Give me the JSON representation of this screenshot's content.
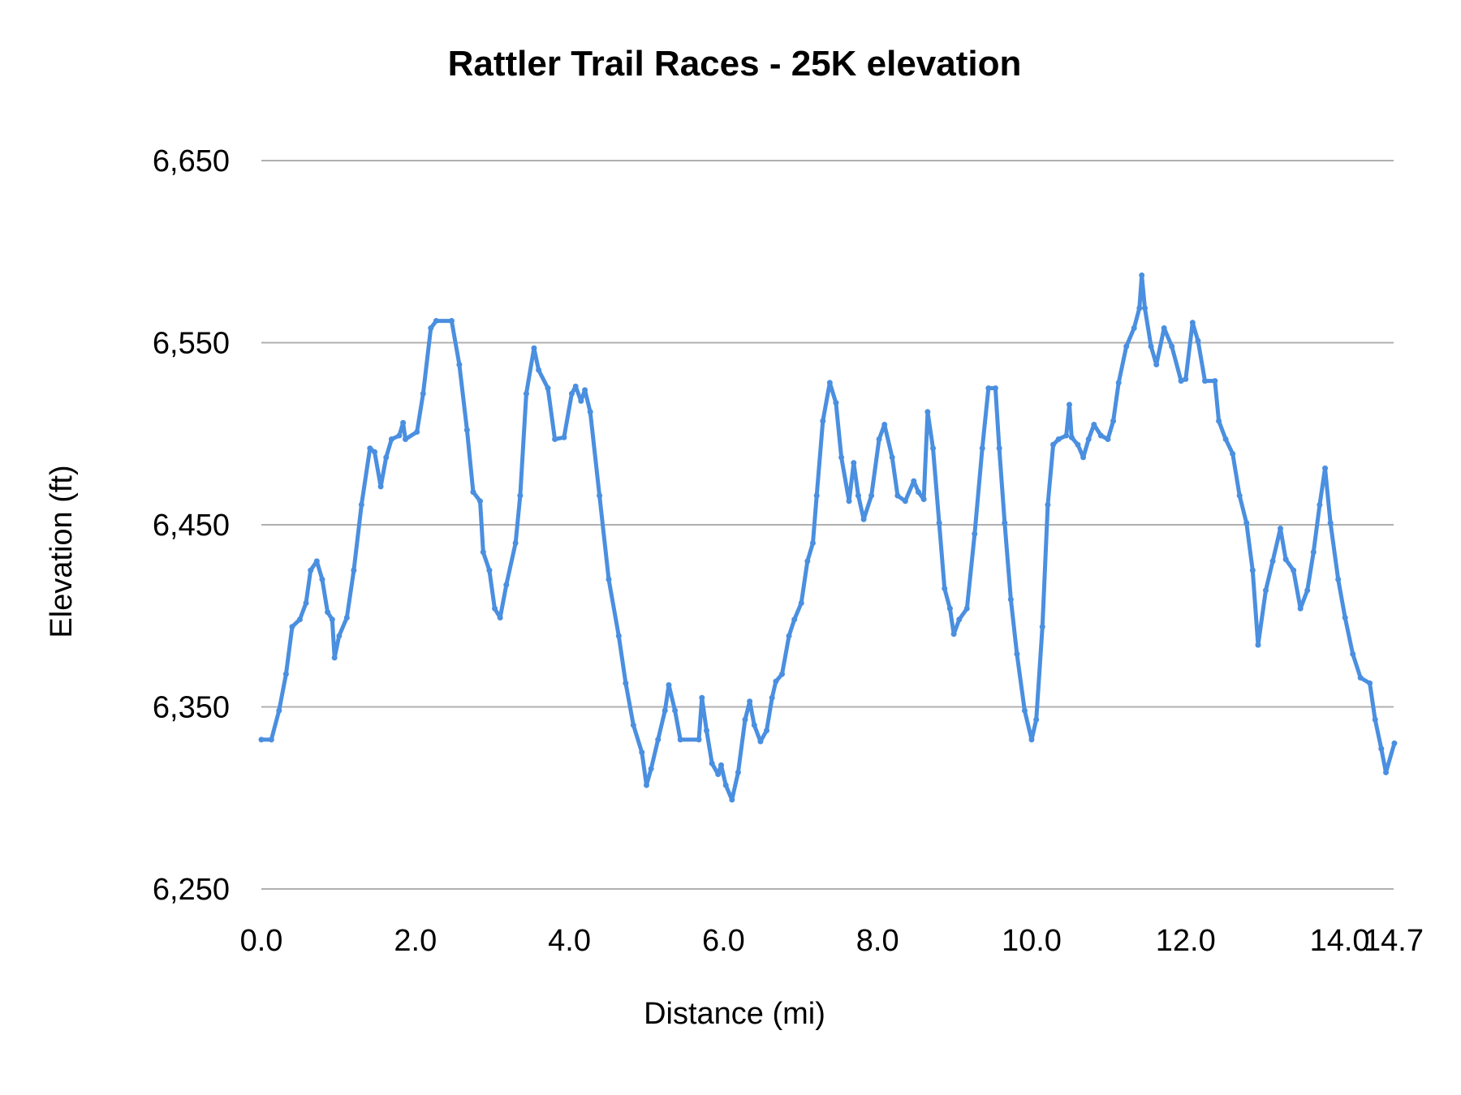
{
  "chart_data": {
    "type": "line",
    "title": "Rattler Trail Races - 25K elevation",
    "xlabel": "Distance (mi)",
    "ylabel": "Elevation (ft)",
    "xlim": [
      0,
      14.7
    ],
    "ylim": [
      6250,
      6650
    ],
    "x_ticks": [
      "0.0",
      "2.0",
      "4.0",
      "6.0",
      "8.0",
      "10.0",
      "12.0",
      "14.0",
      "14.7"
    ],
    "x_tick_values": [
      0,
      2,
      4,
      6,
      8,
      10,
      12,
      14,
      14.7
    ],
    "y_ticks": [
      "6,250",
      "6,350",
      "6,450",
      "6,550",
      "6,650"
    ],
    "y_tick_values": [
      6250,
      6350,
      6450,
      6550,
      6650
    ],
    "grid": "horizontal",
    "legend": "none",
    "line_color": "#4a8fe0",
    "grid_color": "#b0b0b0",
    "series": [
      {
        "x": [
          0,
          0.13,
          0.23,
          0.32,
          0.4,
          0.5,
          0.58,
          0.64,
          0.72,
          0.79,
          0.86,
          0.92,
          0.95,
          1.01,
          1.11,
          1.2,
          1.3,
          1.41,
          1.47,
          1.55,
          1.62,
          1.69,
          1.79,
          1.84,
          1.87,
          2.02,
          2.1,
          2.2,
          2.27,
          2.47,
          2.57,
          2.67,
          2.75,
          2.84,
          2.88,
          2.96,
          3.03,
          3.1,
          3.18,
          3.3,
          3.36,
          3.44,
          3.54,
          3.6,
          3.72,
          3.81,
          3.93,
          4.03,
          4.08,
          4.15,
          4.2,
          4.27,
          4.39,
          4.51,
          4.64,
          4.73,
          4.83,
          4.94,
          5.0,
          5.06,
          5.15,
          5.24,
          5.29,
          5.37,
          5.44,
          5.68,
          5.72,
          5.78,
          5.85,
          5.93,
          5.97,
          6.03,
          6.11,
          6.19,
          6.28,
          6.34,
          6.4,
          6.48,
          6.56,
          6.63,
          6.68,
          6.76,
          6.85,
          6.92,
          7.01,
          7.09,
          7.16,
          7.21,
          7.29,
          7.38,
          7.46,
          7.53,
          7.63,
          7.69,
          7.75,
          7.82,
          7.92,
          8.02,
          8.09,
          8.19,
          8.26,
          8.36,
          8.47,
          8.53,
          8.6,
          8.65,
          8.72,
          8.8,
          8.87,
          8.94,
          8.99,
          9.06,
          9.16,
          9.26,
          9.36,
          9.44,
          9.53,
          9.58,
          9.65,
          9.73,
          9.81,
          9.91,
          10.0,
          10.06,
          10.14,
          10.21,
          10.28,
          10.35,
          10.45,
          10.49,
          10.52,
          10.6,
          10.67,
          10.74,
          10.81,
          10.9,
          10.99,
          11.06,
          11.13,
          11.23,
          11.33,
          11.4,
          11.43,
          11.47,
          11.55,
          11.62,
          11.72,
          11.82,
          11.94,
          12.0,
          12.09,
          12.16,
          12.25,
          12.38,
          12.43,
          12.52,
          12.61,
          12.7,
          12.79,
          12.87,
          12.94,
          13.04,
          13.13,
          13.23,
          13.3,
          13.4,
          13.49,
          13.58,
          13.66,
          13.74,
          13.81,
          13.88,
          13.98,
          14.07,
          14.17,
          14.27,
          14.39,
          14.46,
          14.54,
          14.6,
          14.71
        ],
        "y": [
          6332,
          6332,
          6348,
          6368,
          6394,
          6398,
          6407,
          6425,
          6430,
          6420,
          6402,
          6398,
          6377,
          6389,
          6399,
          6425,
          6461,
          6492,
          6490,
          6471,
          6487,
          6497,
          6499,
          6506,
          6497,
          6501,
          6522,
          6558,
          6562,
          6562,
          6538,
          6502,
          6468,
          6463,
          6435,
          6425,
          6404,
          6399,
          6417,
          6440,
          6466,
          6522,
          6547,
          6535,
          6525,
          6497,
          6498,
          6522,
          6526,
          6518,
          6524,
          6512,
          6466,
          6420,
          6389,
          6363,
          6340,
          6325,
          6307,
          6316,
          6332,
          6348,
          6362,
          6348,
          6332,
          6332,
          6355,
          6337,
          6319,
          6313,
          6318,
          6307,
          6299,
          6314,
          6343,
          6353,
          6340,
          6331,
          6337,
          6355,
          6364,
          6368,
          6389,
          6398,
          6407,
          6430,
          6440,
          6466,
          6507,
          6528,
          6517,
          6487,
          6463,
          6484,
          6466,
          6453,
          6466,
          6497,
          6505,
          6487,
          6466,
          6463,
          6474,
          6468,
          6464,
          6512,
          6492,
          6451,
          6415,
          6404,
          6390,
          6398,
          6404,
          6445,
          6492,
          6525,
          6525,
          6492,
          6451,
          6409,
          6379,
          6348,
          6332,
          6343,
          6394,
          6461,
          6494,
          6497,
          6499,
          6516,
          6498,
          6494,
          6487,
          6497,
          6505,
          6499,
          6497,
          6507,
          6528,
          6548,
          6558,
          6569,
          6587,
          6569,
          6548,
          6538,
          6558,
          6548,
          6529,
          6530,
          6561,
          6551,
          6529,
          6529,
          6507,
          6497,
          6489,
          6466,
          6451,
          6425,
          6384,
          6414,
          6430,
          6448,
          6431,
          6425,
          6404,
          6414,
          6435,
          6461,
          6481,
          6451,
          6420,
          6399,
          6379,
          6366,
          6363,
          6343,
          6327,
          6314,
          6330
        ]
      }
    ]
  }
}
